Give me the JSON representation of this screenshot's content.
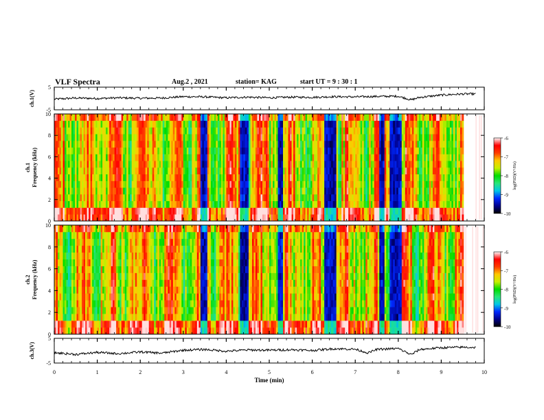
{
  "header": {
    "title": "VLF Spectra",
    "date": "Aug.2 , 2021",
    "station": "station= KAG",
    "start": "start UT = 9 : 30 : 1"
  },
  "chart_data": [
    {
      "type": "line",
      "name": "ch.1 waveform",
      "ylabel": "ch.1(V)",
      "ylim": [
        -5,
        5
      ],
      "yticks": [
        "5",
        "-5"
      ],
      "xlim": [
        0,
        10
      ],
      "x": [
        0,
        0.5,
        1,
        1.5,
        2,
        2.5,
        3,
        3.5,
        4,
        4.5,
        5,
        5.5,
        6,
        6.5,
        7,
        7.5,
        8,
        8.3,
        8.5,
        9,
        9.5,
        9.8
      ],
      "y": [
        -0.3,
        0.2,
        0.0,
        0.3,
        0.1,
        0.2,
        0.8,
        0.7,
        0.3,
        0.6,
        0.3,
        0.6,
        0.5,
        0.8,
        0.7,
        0.9,
        1.0,
        -0.6,
        0.5,
        1.5,
        2.0,
        2.0
      ]
    },
    {
      "type": "heatmap",
      "name": "ch.1 spectrogram",
      "ylabel": "ch.1\nFrequency (kHz)",
      "ylim": [
        0,
        10
      ],
      "yticks": [
        "0",
        "2",
        "4",
        "6",
        "8",
        "10"
      ],
      "xlim": [
        0,
        10
      ],
      "colorbar": {
        "label": "log(PSD)(V²/Hz)",
        "ticks": [
          "-6",
          "-7",
          "-8",
          "-9",
          "-10"
        ],
        "range": [
          -10,
          -6
        ]
      }
    },
    {
      "type": "heatmap",
      "name": "ch.2 spectrogram",
      "ylabel": "ch.2\nFrequency (kHz)",
      "ylim": [
        0,
        10
      ],
      "yticks": [
        "0",
        "2",
        "4",
        "6",
        "8",
        "10"
      ],
      "xlim": [
        0,
        10
      ],
      "colorbar": {
        "label": "log(PSD)(V²/Hz)",
        "ticks": [
          "-6",
          "-7",
          "-8",
          "-9",
          "-10"
        ],
        "range": [
          -10,
          -6
        ]
      }
    },
    {
      "type": "line",
      "name": "ch.3 waveform",
      "ylabel": "ch.3(V)",
      "ylim": [
        -5,
        5
      ],
      "yticks": [
        "5",
        "-5"
      ],
      "xlim": [
        0,
        10
      ],
      "xlabel": "Time (min)",
      "xticks": [
        "0",
        "1",
        "2",
        "3",
        "4",
        "5",
        "6",
        "7",
        "8",
        "9",
        "10"
      ],
      "x": [
        0,
        0.5,
        1,
        1.5,
        2,
        2.5,
        3,
        3.5,
        4,
        4.5,
        5,
        5.5,
        6,
        6.5,
        7,
        7.3,
        7.5,
        8,
        8.3,
        8.5,
        9,
        9.5,
        9.8
      ],
      "y": [
        -0.8,
        -1.5,
        -0.7,
        -1.2,
        -0.5,
        -1.0,
        0.2,
        0.5,
        -0.2,
        0.3,
        0.2,
        0.4,
        0.1,
        0.8,
        0.6,
        -0.9,
        0.5,
        0.9,
        -1.6,
        0.5,
        1.2,
        1.4,
        1.3
      ]
    }
  ]
}
